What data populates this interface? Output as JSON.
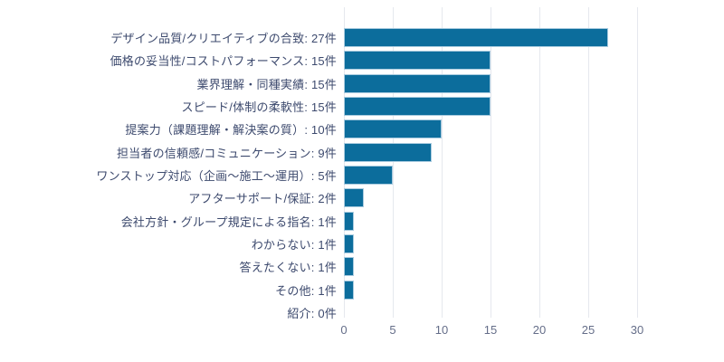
{
  "chart_data": {
    "type": "bar",
    "orientation": "horizontal",
    "title": "",
    "xlabel": "",
    "ylabel": "",
    "unit": "件",
    "grid": true,
    "legend": false,
    "xlim": [
      0,
      30
    ],
    "xticks": [
      0,
      5,
      10,
      15,
      20,
      25,
      30
    ],
    "categories": [
      "デザイン品質/クリエイティブの合致",
      "価格の妥当性/コストパフォーマンス",
      "業界理解・同種実績",
      "スピード/体制の柔軟性",
      "提案力（課題理解・解決案の質）",
      "担当者の信頼感/コミュニケーション",
      "ワンストップ対応（企画～施工～運用）",
      "アフターサポート/保証",
      "会社方針・グループ規定による指名",
      "わからない",
      "答えたくない",
      "その他",
      "紹介"
    ],
    "values": [
      27,
      15,
      15,
      15,
      10,
      9,
      5,
      2,
      1,
      1,
      1,
      1,
      0
    ],
    "display_labels": [
      "デザイン品質/クリエイティブの合致: 27件",
      "価格の妥当性/コストパフォーマンス: 15件",
      "業界理解・同種実績: 15件",
      "スピード/体制の柔軟性: 15件",
      "提案力（課題理解・解決案の質）: 10件",
      "担当者の信頼感/コミュニケーション: 9件",
      "ワンストップ対応（企画～施工～運用）: 5件",
      "アフターサポート/保証: 2件",
      "会社方針・グループ規定による指名: 1件",
      "わからない: 1件",
      "答えたくない: 1件",
      "その他: 1件",
      "紹介: 0件"
    ],
    "colors": {
      "bar": "#0c6d9c",
      "bar_border": "#a9cbdf",
      "gridline": "#e5e8ee",
      "label_text": "#3d4a6e",
      "tick_text": "#656e89",
      "background": "#ffffff"
    }
  }
}
